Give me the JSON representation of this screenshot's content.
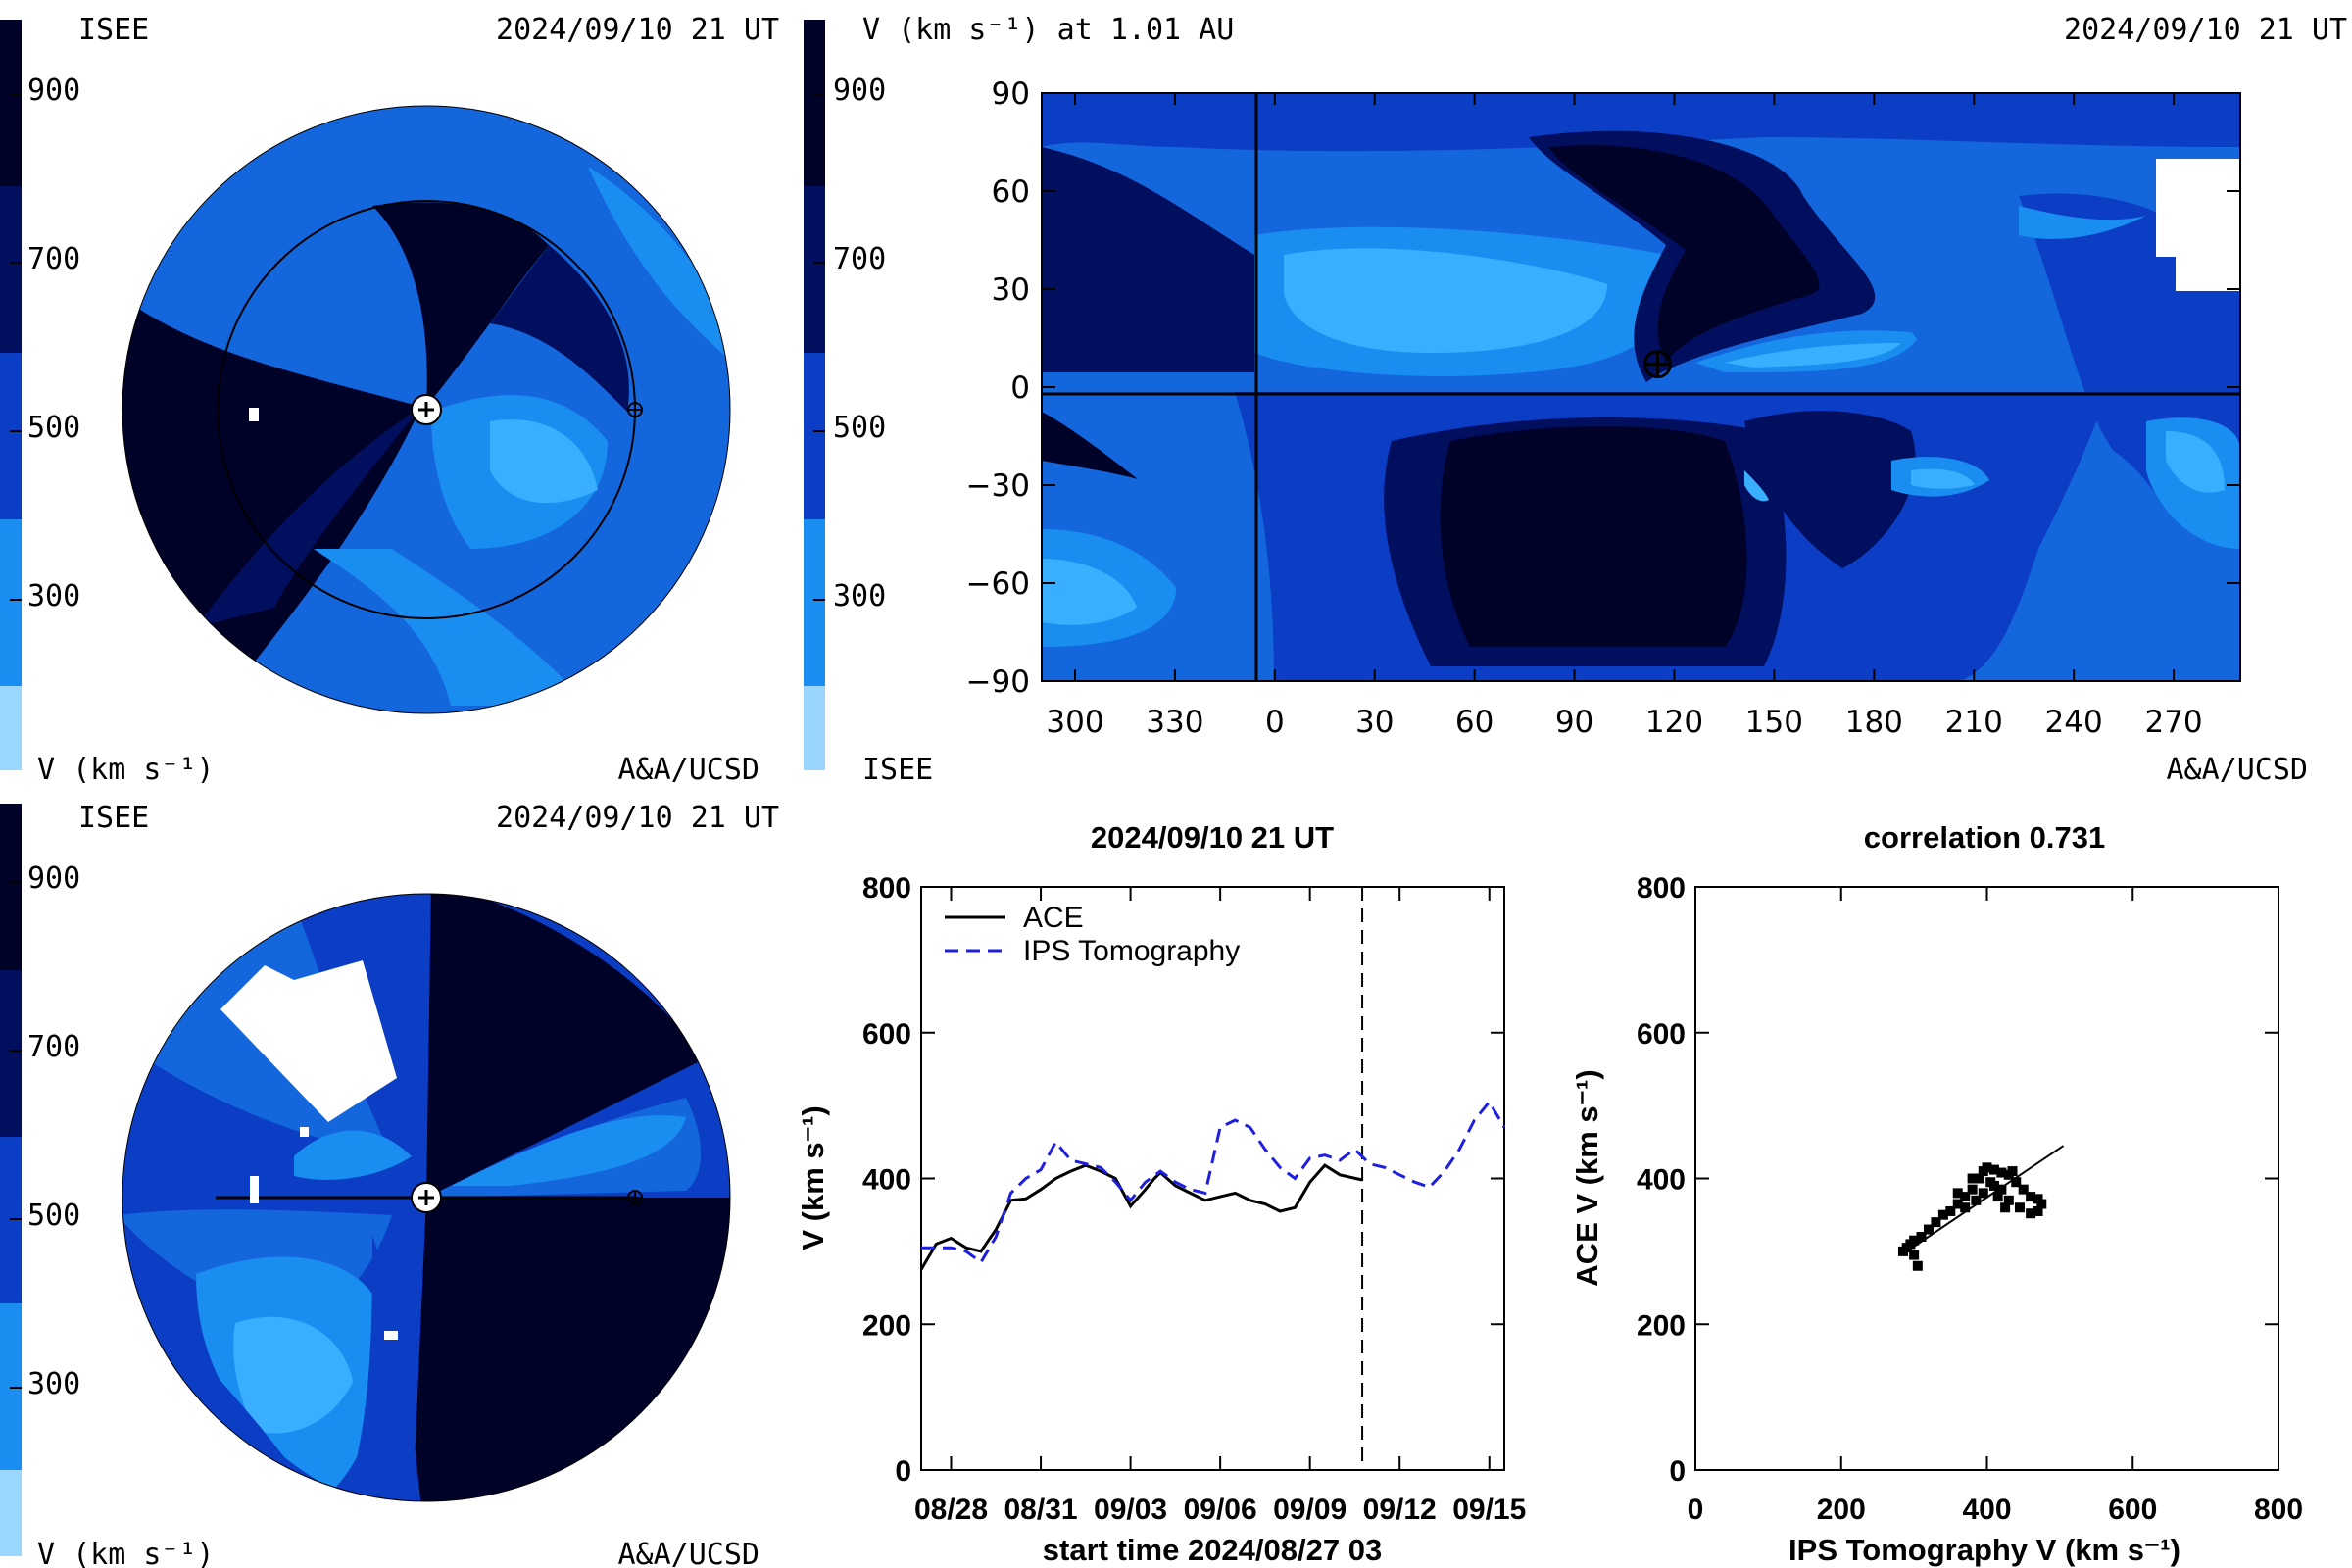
{
  "colors": {
    "scale": [
      "#9ad6ff",
      "#3aaeff",
      "#1a8ef0",
      "#1466dc",
      "#0b3ec4",
      "#06229a",
      "#020e5e",
      "#000228"
    ],
    "white_region": "#ffffff",
    "ips_line": "#1f1fe0",
    "ace_line": "#000000"
  },
  "panel_tl": {
    "org": "ISEE",
    "timestamp": "2024/09/10 21 UT",
    "colorbar_label": "V (km s⁻¹)",
    "credit": "A&A/UCSD",
    "colorbar_ticks": [
      "900",
      "700",
      "500",
      "300"
    ]
  },
  "panel_tr": {
    "title": "V (km s⁻¹) at 1.01 AU",
    "timestamp": "2024/09/10 21 UT",
    "org": "ISEE",
    "credit": "A&A/UCSD",
    "colorbar_ticks": [
      "900",
      "700",
      "500",
      "300"
    ],
    "x_ticks": [
      "300",
      "330",
      "0",
      "30",
      "60",
      "90",
      "120",
      "150",
      "180",
      "210",
      "240",
      "270"
    ],
    "y_ticks": [
      "90",
      "60",
      "30",
      "0",
      "−30",
      "−60",
      "−90"
    ],
    "earth_marker": {
      "longitude": 115,
      "latitude": 7
    }
  },
  "panel_bl": {
    "org": "ISEE",
    "timestamp": "2024/09/10 21 UT",
    "colorbar_label": "V (km s⁻¹)",
    "credit": "A&A/UCSD",
    "colorbar_ticks": [
      "900",
      "700",
      "500",
      "300"
    ]
  },
  "chart_data": [
    {
      "type": "line",
      "title": "2024/09/10 21 UT",
      "xlabel": "start time 2024/08/27 03",
      "ylabel": "V (km s⁻¹)",
      "ylim": [
        0,
        800
      ],
      "y_ticks": [
        "0",
        "200",
        "400",
        "600",
        "800"
      ],
      "x_ticks": [
        "08/28",
        "08/31",
        "09/03",
        "09/06",
        "09/09",
        "09/12",
        "09/15"
      ],
      "x_tick_days": [
        1,
        4,
        7,
        10,
        13,
        16,
        19
      ],
      "xlim_days": [
        0,
        19.5
      ],
      "now_marker_day": 14.75,
      "series": [
        {
          "name": "ACE",
          "style": "solid",
          "x_days": [
            0,
            0.5,
            1.0,
            1.5,
            2.0,
            2.5,
            3.0,
            3.5,
            4.0,
            4.5,
            5.0,
            5.5,
            6.0,
            6.5,
            7.0,
            7.5,
            7.8,
            8.0,
            8.5,
            9.0,
            9.5,
            10.0,
            10.5,
            11.0,
            11.5,
            12.0,
            12.5,
            13.0,
            13.5,
            14.0,
            14.75
          ],
          "values": [
            275,
            310,
            318,
            305,
            300,
            330,
            370,
            372,
            385,
            400,
            410,
            418,
            410,
            400,
            362,
            385,
            400,
            408,
            390,
            380,
            370,
            375,
            380,
            370,
            365,
            355,
            360,
            395,
            418,
            405,
            398
          ]
        },
        {
          "name": "IPS Tomography",
          "style": "dashed",
          "x_days": [
            0,
            1.0,
            1.5,
            2.0,
            2.5,
            3.0,
            3.5,
            4.0,
            4.5,
            5.0,
            5.5,
            6.0,
            6.5,
            7.0,
            7.5,
            8.0,
            8.5,
            9.0,
            9.5,
            10.0,
            10.5,
            11.0,
            11.5,
            12.0,
            12.5,
            13.0,
            13.5,
            14.0,
            14.5,
            15.0,
            15.5,
            16.0,
            16.5,
            17.0,
            17.5,
            18.0,
            18.5,
            19.0,
            19.5
          ],
          "values": [
            305,
            305,
            300,
            285,
            320,
            380,
            400,
            412,
            450,
            425,
            420,
            415,
            395,
            370,
            395,
            410,
            395,
            385,
            380,
            470,
            480,
            470,
            440,
            415,
            400,
            428,
            432,
            425,
            440,
            420,
            415,
            405,
            395,
            388,
            410,
            440,
            480,
            505,
            470
          ]
        }
      ]
    },
    {
      "type": "scatter",
      "title": "correlation 0.731",
      "xlabel": "IPS Tomography V (km s⁻¹)",
      "ylabel": "ACE V (km s⁻¹)",
      "xlim": [
        0,
        800
      ],
      "ylim": [
        0,
        800
      ],
      "x_ticks": [
        "0",
        "200",
        "400",
        "600",
        "800"
      ],
      "y_ticks": [
        "0",
        "200",
        "400",
        "600",
        "800"
      ],
      "points": [
        {
          "x": 285,
          "y": 300
        },
        {
          "x": 290,
          "y": 305
        },
        {
          "x": 295,
          "y": 310
        },
        {
          "x": 300,
          "y": 315
        },
        {
          "x": 300,
          "y": 295
        },
        {
          "x": 305,
          "y": 280
        },
        {
          "x": 310,
          "y": 320
        },
        {
          "x": 320,
          "y": 330
        },
        {
          "x": 330,
          "y": 340
        },
        {
          "x": 340,
          "y": 350
        },
        {
          "x": 350,
          "y": 355
        },
        {
          "x": 360,
          "y": 365
        },
        {
          "x": 370,
          "y": 375
        },
        {
          "x": 380,
          "y": 385
        },
        {
          "x": 390,
          "y": 400
        },
        {
          "x": 395,
          "y": 410
        },
        {
          "x": 400,
          "y": 415
        },
        {
          "x": 410,
          "y": 412
        },
        {
          "x": 420,
          "y": 408
        },
        {
          "x": 430,
          "y": 405
        },
        {
          "x": 440,
          "y": 395
        },
        {
          "x": 450,
          "y": 385
        },
        {
          "x": 460,
          "y": 375
        },
        {
          "x": 470,
          "y": 372
        },
        {
          "x": 475,
          "y": 365
        },
        {
          "x": 470,
          "y": 355
        },
        {
          "x": 460,
          "y": 352
        },
        {
          "x": 445,
          "y": 360
        },
        {
          "x": 430,
          "y": 370
        },
        {
          "x": 420,
          "y": 385
        },
        {
          "x": 405,
          "y": 395
        },
        {
          "x": 395,
          "y": 380
        },
        {
          "x": 385,
          "y": 370
        },
        {
          "x": 415,
          "y": 375
        },
        {
          "x": 425,
          "y": 360
        },
        {
          "x": 380,
          "y": 400
        },
        {
          "x": 370,
          "y": 360
        },
        {
          "x": 360,
          "y": 380
        },
        {
          "x": 410,
          "y": 390
        },
        {
          "x": 435,
          "y": 410
        }
      ],
      "fit_line": [
        {
          "x": 290,
          "y": 300
        },
        {
          "x": 505,
          "y": 445
        }
      ]
    }
  ]
}
